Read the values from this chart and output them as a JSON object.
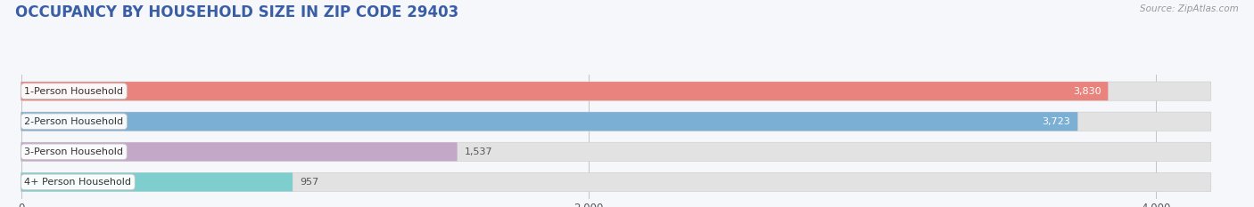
{
  "title": "OCCUPANCY BY HOUSEHOLD SIZE IN ZIP CODE 29403",
  "source": "Source: ZipAtlas.com",
  "categories": [
    "1-Person Household",
    "2-Person Household",
    "3-Person Household",
    "4+ Person Household"
  ],
  "values": [
    3830,
    3723,
    1537,
    957
  ],
  "bar_colors": [
    "#E8837D",
    "#7BAFD4",
    "#C4A8C8",
    "#7ECECE"
  ],
  "background_color": "#f5f7fa",
  "title_color": "#3A5EA6",
  "source_color": "#999999",
  "xlim_max": 4300,
  "xticks": [
    0,
    2000,
    4000
  ],
  "title_fontsize": 12,
  "bar_height": 0.62,
  "value_threshold": 2000
}
